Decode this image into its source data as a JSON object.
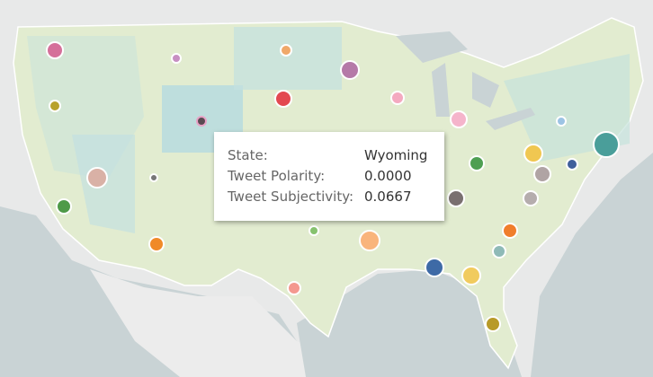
{
  "tooltip": {
    "rows": [
      {
        "label": "State:",
        "value": "Wyoming"
      },
      {
        "label": "Tweet Polarity:",
        "value": "0.0000"
      },
      {
        "label": "Tweet Subjectivity:",
        "value": "0.0667"
      }
    ]
  }
}
